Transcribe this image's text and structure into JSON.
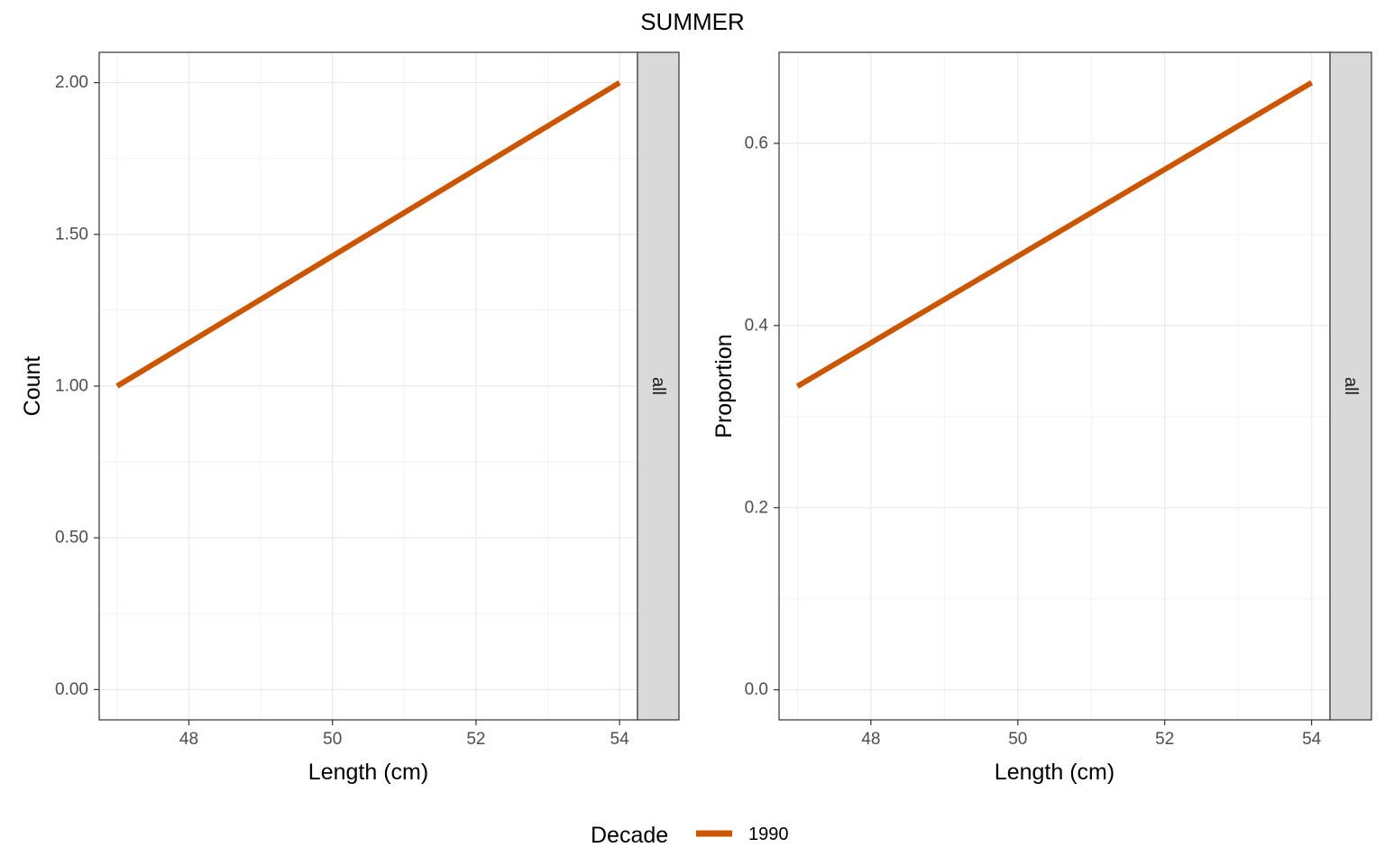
{
  "title": "SUMMER",
  "legend": {
    "title": "Decade",
    "entries": [
      {
        "label": "1990",
        "color": "#cc5500"
      }
    ]
  },
  "colors": {
    "line": "#cc5500",
    "grid_major": "#ebebeb",
    "grid_minor": "#f2f2f2",
    "strip_fill": "#d9d9d9",
    "panel_border": "#333333"
  },
  "chart_data": [
    {
      "type": "line",
      "ylabel": "Count",
      "xlabel": "Length (cm)",
      "facet_label": "all",
      "xlim": [
        46.75,
        54.25
      ],
      "ylim": [
        -0.1,
        2.1
      ],
      "xticks": [
        48,
        50,
        52,
        54
      ],
      "xtick_labels": [
        "48",
        "50",
        "52",
        "54"
      ],
      "yticks": [
        0,
        0.5,
        1.0,
        1.5,
        2.0
      ],
      "ytick_labels": [
        "0.00",
        "0.50",
        "1.00",
        "1.50",
        "2.00"
      ],
      "grid": true,
      "series": [
        {
          "name": "1990",
          "x": [
            47,
            54
          ],
          "y": [
            1,
            2
          ]
        }
      ]
    },
    {
      "type": "line",
      "ylabel": "Proportion",
      "xlabel": "Length (cm)",
      "facet_label": "all",
      "xlim": [
        46.75,
        54.25
      ],
      "ylim": [
        -0.033,
        0.7
      ],
      "xticks": [
        48,
        50,
        52,
        54
      ],
      "xtick_labels": [
        "48",
        "50",
        "52",
        "54"
      ],
      "yticks": [
        0,
        0.2,
        0.4,
        0.6
      ],
      "ytick_labels": [
        "0.0",
        "0.2",
        "0.4",
        "0.6"
      ],
      "grid": true,
      "series": [
        {
          "name": "1990",
          "x": [
            47,
            54
          ],
          "y": [
            0.3333,
            0.6667
          ]
        }
      ]
    }
  ]
}
